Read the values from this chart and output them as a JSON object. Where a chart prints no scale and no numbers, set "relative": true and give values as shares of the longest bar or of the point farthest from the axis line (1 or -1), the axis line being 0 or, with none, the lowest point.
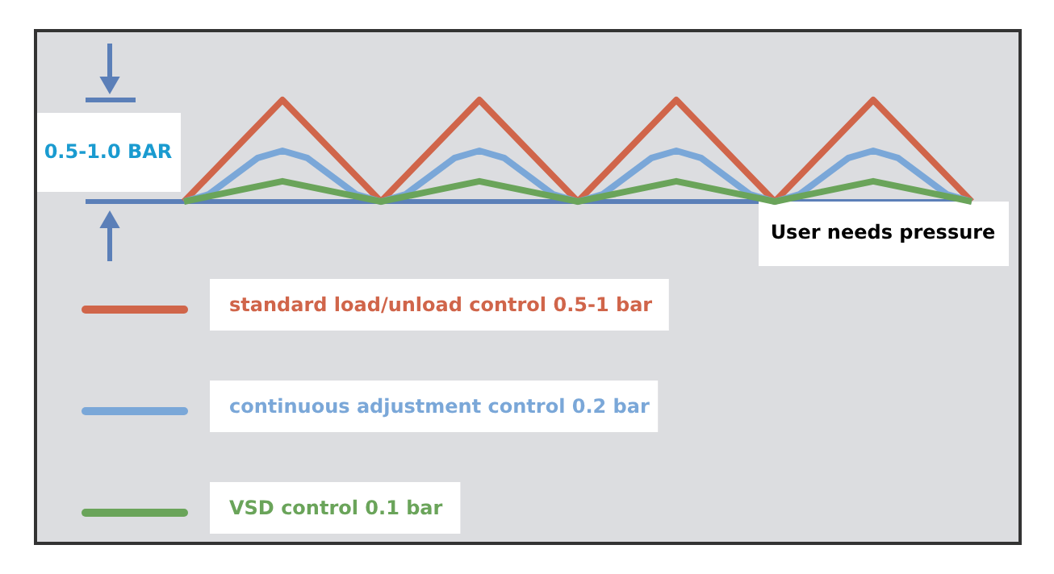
{
  "chart_data": {
    "type": "line",
    "relative": true,
    "categories": [
      null,
      null,
      null,
      null,
      null,
      null,
      null,
      null,
      null,
      null,
      null,
      null,
      null,
      null,
      null,
      null,
      null,
      null,
      null,
      null,
      null,
      null,
      null,
      null,
      null,
      null,
      null,
      null,
      null,
      null,
      null,
      null,
      null
    ],
    "series": [
      {
        "name": "standard load/unload control 0.5-1 bar",
        "color": "#d0654a",
        "values": [
          0,
          0.25,
          0.5,
          0.75,
          1,
          0.75,
          0.5,
          0.25,
          0,
          0.25,
          0.5,
          0.75,
          1,
          0.75,
          0.5,
          0.25,
          0,
          0.25,
          0.5,
          0.75,
          1,
          0.75,
          0.5,
          0.25,
          0,
          0.25,
          0.5,
          0.75,
          1,
          0.75,
          0.5,
          0.25,
          0
        ]
      },
      {
        "name": "continuous adjustment control 0.2 bar",
        "color": "#7aa7d8",
        "values": [
          0,
          0.07,
          0.25,
          0.43,
          0.5,
          0.43,
          0.25,
          0.07,
          0,
          0.07,
          0.25,
          0.43,
          0.5,
          0.43,
          0.25,
          0.07,
          0,
          0.07,
          0.25,
          0.43,
          0.5,
          0.43,
          0.25,
          0.07,
          0,
          0.07,
          0.25,
          0.43,
          0.5,
          0.43,
          0.25,
          0.07,
          0
        ]
      },
      {
        "name": "VSD control 0.1 bar",
        "color": "#6aa45a",
        "values": [
          0,
          0.05,
          0.1,
          0.15,
          0.2,
          0.15,
          0.1,
          0.05,
          0,
          0.05,
          0.1,
          0.15,
          0.2,
          0.15,
          0.1,
          0.05,
          0,
          0.05,
          0.1,
          0.15,
          0.2,
          0.15,
          0.1,
          0.05,
          0,
          0.05,
          0.1,
          0.15,
          0.2,
          0.15,
          0.1,
          0.05,
          0
        ]
      }
    ],
    "annotations": [
      "0.5-1.0 BAR"
    ],
    "ref_lines": [
      {
        "axis": "y",
        "value": 0,
        "label": "User needs pressure",
        "color": "#5b7fb8"
      }
    ],
    "legend": "bottom"
  }
}
